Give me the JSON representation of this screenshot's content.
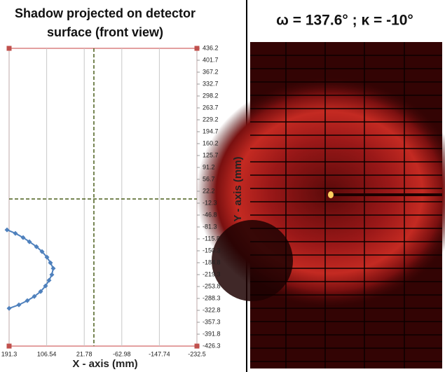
{
  "chart_data": {
    "type": "line",
    "title": "Shadow projected on detector surface (front view)",
    "x_label": "X - axis (mm)",
    "y_label": "Y - axis (mm)",
    "x": [
      196.0,
      177.1,
      159.7,
      145.5,
      129.6,
      117.0,
      105.9,
      98.0,
      91.7,
      94.9,
      101.2,
      109.1,
      120.2,
      134.4,
      150.2,
      169.2,
      191.3
    ],
    "values": [
      -89.6,
      -99.7,
      -111.9,
      -124.1,
      -138.3,
      -152.5,
      -168.8,
      -185.0,
      -201.3,
      -219.5,
      -235.8,
      -252.0,
      -268.3,
      -282.5,
      -294.6,
      -306.8,
      -317.0
    ],
    "color": "#4f81bd",
    "xlim": [
      191.3,
      -232.5
    ],
    "xticks": [
      191.3,
      106.54,
      21.78,
      -62.98,
      -147.74,
      -232.5
    ],
    "ylim": [
      -426.3,
      436.2
    ],
    "yticks": [
      436.2,
      401.7,
      367.2,
      332.7,
      298.2,
      263.7,
      229.2,
      194.7,
      160.2,
      125.7,
      91.2,
      56.7,
      22.2,
      -12.3,
      -46.8,
      -81.3,
      -115.8,
      -150.3,
      -184.8,
      -219.3,
      -253.8,
      -288.3,
      -322.8,
      -357.3,
      -391.8,
      -426.3
    ],
    "crosshair": {
      "x": 0,
      "y": 0
    },
    "grid": true
  },
  "image": {
    "title": "ω = 137.6° ; κ = -10°"
  }
}
